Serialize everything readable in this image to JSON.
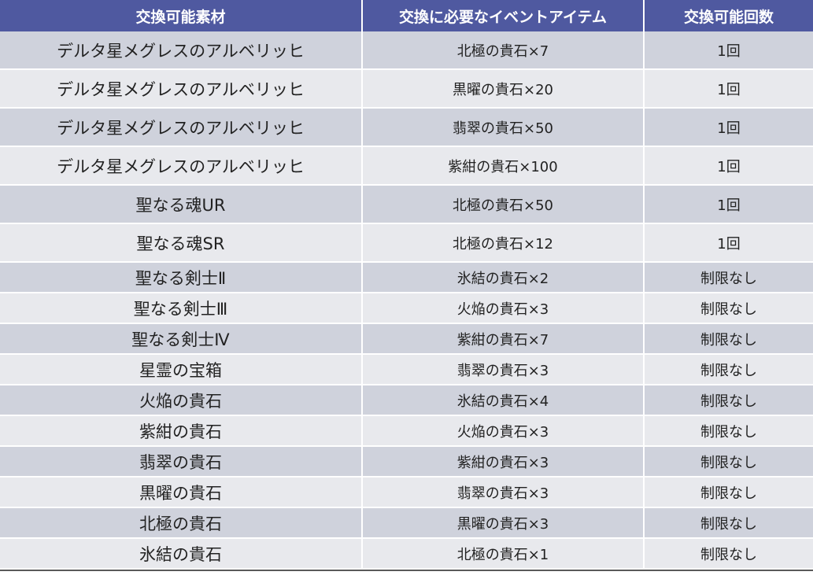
{
  "headers": {
    "material": "交換可能素材",
    "required_item": "交換に必要なイベントアイテム",
    "limit": "交換可能回数"
  },
  "rows": [
    {
      "material": "デルタ星メグレスのアルベリッヒ",
      "item": "北極の貴石×7",
      "limit": "1回"
    },
    {
      "material": "デルタ星メグレスのアルベリッヒ",
      "item": "黒曜の貴石×20",
      "limit": "1回"
    },
    {
      "material": "デルタ星メグレスのアルベリッヒ",
      "item": "翡翠の貴石×50",
      "limit": "1回"
    },
    {
      "material": "デルタ星メグレスのアルベリッヒ",
      "item": "紫紺の貴石×100",
      "limit": "1回"
    },
    {
      "material": "聖なる魂UR",
      "item": "北極の貴石×50",
      "limit": "1回"
    },
    {
      "material": "聖なる魂SR",
      "item": "北極の貴石×12",
      "limit": "1回"
    },
    {
      "material": "聖なる剣士Ⅱ",
      "item": "氷結の貴石×2",
      "limit": "制限なし"
    },
    {
      "material": "聖なる剣士Ⅲ",
      "item": "火焔の貴石×3",
      "limit": "制限なし"
    },
    {
      "material": "聖なる剣士Ⅳ",
      "item": "紫紺の貴石×7",
      "limit": "制限なし"
    },
    {
      "material": "星霊の宝箱",
      "item": "翡翠の貴石×3",
      "limit": "制限なし"
    },
    {
      "material": "火焔の貴石",
      "item": "氷結の貴石×4",
      "limit": "制限なし"
    },
    {
      "material": "紫紺の貴石",
      "item": "火焔の貴石×3",
      "limit": "制限なし"
    },
    {
      "material": "翡翠の貴石",
      "item": "紫紺の貴石×3",
      "limit": "制限なし"
    },
    {
      "material": "黒曜の貴石",
      "item": "翡翠の貴石×3",
      "limit": "制限なし"
    },
    {
      "material": "北極の貴石",
      "item": "黒曜の貴石×3",
      "limit": "制限なし"
    },
    {
      "material": "氷結の貴石",
      "item": "北極の貴石×1",
      "limit": "制限なし"
    }
  ]
}
